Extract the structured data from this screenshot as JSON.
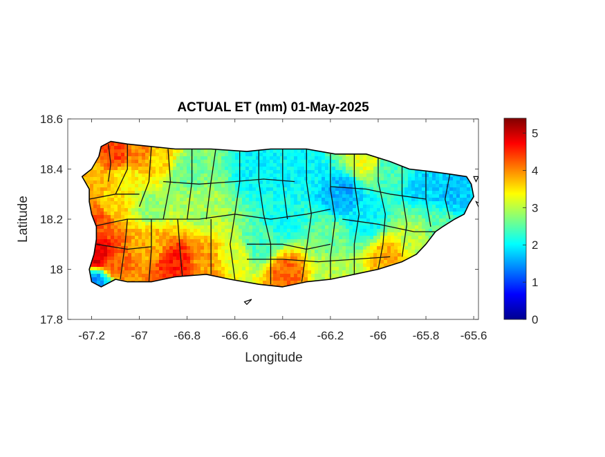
{
  "chart_data": {
    "type": "heatmap",
    "title": "ACTUAL ET (mm) 01-May-2025",
    "xlabel": "Longitude",
    "ylabel": "Latitude",
    "xlim": [
      -67.3,
      -65.58
    ],
    "ylim": [
      17.8,
      18.6
    ],
    "xticks": [
      {
        "value": -67.2,
        "label": "-67.2"
      },
      {
        "value": -67.0,
        "label": "-67"
      },
      {
        "value": -66.8,
        "label": "-66.8"
      },
      {
        "value": -66.6,
        "label": "-66.6"
      },
      {
        "value": -66.4,
        "label": "-66.4"
      },
      {
        "value": -66.2,
        "label": "-66.2"
      },
      {
        "value": -66.0,
        "label": "-66"
      },
      {
        "value": -65.8,
        "label": "-65.8"
      },
      {
        "value": -65.6,
        "label": "-65.6"
      }
    ],
    "yticks": [
      {
        "value": 18.6,
        "label": "18.6"
      },
      {
        "value": 18.4,
        "label": "18.4"
      },
      {
        "value": 18.2,
        "label": "18.2"
      },
      {
        "value": 18.0,
        "label": "18"
      },
      {
        "value": 17.8,
        "label": "17.8"
      }
    ],
    "colorbar": {
      "colormap": "jet",
      "range": [
        0,
        5.4
      ],
      "ticks": [
        {
          "value": 0,
          "label": "0"
        },
        {
          "value": 1,
          "label": "1"
        },
        {
          "value": 2,
          "label": "2"
        },
        {
          "value": 3,
          "label": "3"
        },
        {
          "value": 4,
          "label": "4"
        },
        {
          "value": 5,
          "label": "5"
        }
      ]
    },
    "outline": [
      [
        -67.24,
        18.37
      ],
      [
        -67.2,
        18.4
      ],
      [
        -67.17,
        18.45
      ],
      [
        -67.16,
        18.49
      ],
      [
        -67.12,
        18.51
      ],
      [
        -67.05,
        18.5
      ],
      [
        -66.95,
        18.49
      ],
      [
        -66.85,
        18.48
      ],
      [
        -66.7,
        18.48
      ],
      [
        -66.55,
        18.47
      ],
      [
        -66.45,
        18.48
      ],
      [
        -66.3,
        18.48
      ],
      [
        -66.18,
        18.46
      ],
      [
        -66.05,
        18.46
      ],
      [
        -65.95,
        18.43
      ],
      [
        -65.87,
        18.4
      ],
      [
        -65.78,
        18.39
      ],
      [
        -65.7,
        18.38
      ],
      [
        -65.63,
        18.37
      ],
      [
        -65.61,
        18.34
      ],
      [
        -65.6,
        18.29
      ],
      [
        -65.62,
        18.26
      ],
      [
        -65.64,
        18.22
      ],
      [
        -65.68,
        18.2
      ],
      [
        -65.73,
        18.17
      ],
      [
        -65.76,
        18.15
      ],
      [
        -65.8,
        18.1
      ],
      [
        -65.84,
        18.06
      ],
      [
        -65.9,
        18.03
      ],
      [
        -66.0,
        18.0
      ],
      [
        -66.1,
        17.98
      ],
      [
        -66.2,
        17.96
      ],
      [
        -66.3,
        17.95
      ],
      [
        -66.4,
        17.93
      ],
      [
        -66.5,
        17.94
      ],
      [
        -66.62,
        17.96
      ],
      [
        -66.72,
        17.98
      ],
      [
        -66.85,
        17.97
      ],
      [
        -66.95,
        17.95
      ],
      [
        -67.05,
        17.95
      ],
      [
        -67.1,
        17.96
      ],
      [
        -67.16,
        17.93
      ],
      [
        -67.2,
        17.95
      ],
      [
        -67.21,
        18.0
      ],
      [
        -67.19,
        18.06
      ],
      [
        -67.18,
        18.12
      ],
      [
        -67.18,
        18.17
      ],
      [
        -67.2,
        18.22
      ],
      [
        -67.21,
        18.27
      ],
      [
        -67.21,
        18.32
      ],
      [
        -67.24,
        18.37
      ]
    ],
    "islets": [
      [
        [
          -66.56,
          17.87
        ],
        [
          -66.53,
          17.88
        ],
        [
          -66.55,
          17.86
        ]
      ],
      [
        [
          -65.6,
          18.37
        ],
        [
          -65.58,
          18.37
        ],
        [
          -65.59,
          18.35
        ]
      ],
      [
        [
          -65.59,
          18.27
        ],
        [
          -65.57,
          18.26
        ],
        [
          -65.58,
          18.25
        ]
      ]
    ],
    "municipal_boundaries": [
      [
        [
          -67.13,
          18.5
        ],
        [
          -67.12,
          18.42
        ],
        [
          -67.13,
          18.35
        ]
      ],
      [
        [
          -67.21,
          18.28
        ],
        [
          -67.1,
          18.3
        ],
        [
          -67.0,
          18.3
        ]
      ],
      [
        [
          -67.05,
          18.5
        ],
        [
          -67.05,
          18.4
        ],
        [
          -67.1,
          18.3
        ]
      ],
      [
        [
          -66.95,
          18.49
        ],
        [
          -66.96,
          18.35
        ],
        [
          -67.0,
          18.25
        ]
      ],
      [
        [
          -66.88,
          18.48
        ],
        [
          -66.87,
          18.35
        ],
        [
          -66.9,
          18.2
        ]
      ],
      [
        [
          -66.78,
          18.48
        ],
        [
          -66.78,
          18.35
        ],
        [
          -66.8,
          18.2
        ]
      ],
      [
        [
          -66.68,
          18.48
        ],
        [
          -66.7,
          18.35
        ],
        [
          -66.72,
          18.2
        ]
      ],
      [
        [
          -67.2,
          18.17
        ],
        [
          -67.05,
          18.2
        ],
        [
          -66.9,
          18.2
        ],
        [
          -66.75,
          18.2
        ],
        [
          -66.6,
          18.22
        ]
      ],
      [
        [
          -67.18,
          18.1
        ],
        [
          -67.05,
          18.08
        ],
        [
          -66.95,
          18.09
        ]
      ],
      [
        [
          -67.05,
          18.2
        ],
        [
          -67.06,
          18.1
        ],
        [
          -67.08,
          17.96
        ]
      ],
      [
        [
          -66.95,
          18.2
        ],
        [
          -66.95,
          18.08
        ],
        [
          -66.96,
          17.95
        ]
      ],
      [
        [
          -66.84,
          18.2
        ],
        [
          -66.83,
          18.08
        ],
        [
          -66.82,
          17.97
        ]
      ],
      [
        [
          -66.7,
          18.2
        ],
        [
          -66.7,
          18.08
        ],
        [
          -66.7,
          17.98
        ]
      ],
      [
        [
          -66.58,
          18.47
        ],
        [
          -66.58,
          18.35
        ],
        [
          -66.6,
          18.22
        ],
        [
          -66.62,
          18.1
        ],
        [
          -66.6,
          17.96
        ]
      ],
      [
        [
          -66.9,
          18.35
        ],
        [
          -66.75,
          18.34
        ],
        [
          -66.6,
          18.35
        ],
        [
          -66.48,
          18.36
        ],
        [
          -66.35,
          18.35
        ]
      ],
      [
        [
          -66.5,
          18.48
        ],
        [
          -66.5,
          18.35
        ],
        [
          -66.48,
          18.22
        ],
        [
          -66.45,
          18.1
        ],
        [
          -66.45,
          17.94
        ]
      ],
      [
        [
          -66.4,
          18.48
        ],
        [
          -66.4,
          18.35
        ],
        [
          -66.38,
          18.2
        ]
      ],
      [
        [
          -66.6,
          18.22
        ],
        [
          -66.45,
          18.2
        ],
        [
          -66.3,
          18.22
        ],
        [
          -66.2,
          18.24
        ]
      ],
      [
        [
          -66.55,
          18.1
        ],
        [
          -66.4,
          18.1
        ],
        [
          -66.3,
          18.08
        ],
        [
          -66.2,
          18.1
        ]
      ],
      [
        [
          -66.3,
          18.48
        ],
        [
          -66.3,
          18.35
        ],
        [
          -66.28,
          18.22
        ],
        [
          -66.3,
          18.08
        ],
        [
          -66.32,
          17.95
        ]
      ],
      [
        [
          -66.2,
          18.46
        ],
        [
          -66.2,
          18.32
        ],
        [
          -66.18,
          18.2
        ],
        [
          -66.2,
          18.05
        ],
        [
          -66.2,
          17.96
        ]
      ],
      [
        [
          -66.1,
          18.46
        ],
        [
          -66.1,
          18.35
        ],
        [
          -66.08,
          18.22
        ],
        [
          -66.1,
          18.1
        ],
        [
          -66.1,
          17.98
        ]
      ],
      [
        [
          -66.2,
          18.33
        ],
        [
          -66.05,
          18.32
        ],
        [
          -65.95,
          18.3
        ],
        [
          -65.8,
          18.28
        ]
      ],
      [
        [
          -66.0,
          18.46
        ],
        [
          -66.0,
          18.35
        ],
        [
          -65.97,
          18.22
        ],
        [
          -65.98,
          18.1
        ],
        [
          -66.0,
          18.0
        ]
      ],
      [
        [
          -65.9,
          18.42
        ],
        [
          -65.9,
          18.3
        ],
        [
          -65.88,
          18.18
        ],
        [
          -65.9,
          18.05
        ]
      ],
      [
        [
          -65.8,
          18.39
        ],
        [
          -65.8,
          18.28
        ],
        [
          -65.78,
          18.17
        ]
      ],
      [
        [
          -65.7,
          18.38
        ],
        [
          -65.72,
          18.28
        ],
        [
          -65.7,
          18.2
        ]
      ],
      [
        [
          -66.15,
          18.2
        ],
        [
          -66.0,
          18.18
        ],
        [
          -65.85,
          18.15
        ],
        [
          -65.75,
          18.15
        ]
      ],
      [
        [
          -66.55,
          18.04
        ],
        [
          -66.4,
          18.04
        ],
        [
          -66.25,
          18.03
        ],
        [
          -66.1,
          18.04
        ],
        [
          -65.95,
          18.05
        ]
      ]
    ],
    "field_anchors": [
      {
        "lon": -67.17,
        "lat": 18.05,
        "value": 4.9
      },
      {
        "lon": -67.17,
        "lat": 18.2,
        "value": 4.3
      },
      {
        "lon": -67.2,
        "lat": 18.36,
        "value": 3.8
      },
      {
        "lon": -67.12,
        "lat": 18.26,
        "value": 3.6
      },
      {
        "lon": -67.1,
        "lat": 18.47,
        "value": 4.4
      },
      {
        "lon": -67.0,
        "lat": 18.47,
        "value": 4.0
      },
      {
        "lon": -66.92,
        "lat": 18.44,
        "value": 3.6
      },
      {
        "lon": -67.05,
        "lat": 18.35,
        "value": 3.4
      },
      {
        "lon": -66.95,
        "lat": 18.25,
        "value": 2.8
      },
      {
        "lon": -66.8,
        "lat": 18.38,
        "value": 2.6
      },
      {
        "lon": -66.75,
        "lat": 18.25,
        "value": 2.9
      },
      {
        "lon": -66.95,
        "lat": 18.1,
        "value": 3.8
      },
      {
        "lon": -66.85,
        "lat": 18.03,
        "value": 4.6
      },
      {
        "lon": -67.1,
        "lat": 18.02,
        "value": 4.2
      },
      {
        "lon": -66.72,
        "lat": 18.03,
        "value": 3.9
      },
      {
        "lon": -66.6,
        "lat": 18.05,
        "value": 3.2
      },
      {
        "lon": -66.5,
        "lat": 18.4,
        "value": 2.0
      },
      {
        "lon": -66.35,
        "lat": 18.4,
        "value": 2.0
      },
      {
        "lon": -66.4,
        "lat": 18.2,
        "value": 2.1
      },
      {
        "lon": -66.5,
        "lat": 18.1,
        "value": 2.4
      },
      {
        "lon": -66.38,
        "lat": 17.98,
        "value": 4.2
      },
      {
        "lon": -66.2,
        "lat": 17.99,
        "value": 3.0
      },
      {
        "lon": -66.15,
        "lat": 18.3,
        "value": 1.6
      },
      {
        "lon": -66.05,
        "lat": 18.2,
        "value": 2.0
      },
      {
        "lon": -65.95,
        "lat": 18.05,
        "value": 3.8
      },
      {
        "lon": -66.05,
        "lat": 18.44,
        "value": 3.3
      },
      {
        "lon": -65.95,
        "lat": 18.4,
        "value": 2.4
      },
      {
        "lon": -65.8,
        "lat": 18.33,
        "value": 1.8
      },
      {
        "lon": -65.7,
        "lat": 18.3,
        "value": 1.7
      },
      {
        "lon": -65.75,
        "lat": 18.18,
        "value": 2.5
      },
      {
        "lon": -65.85,
        "lat": 18.12,
        "value": 3.0
      },
      {
        "lon": -66.2,
        "lat": 18.12,
        "value": 2.6
      },
      {
        "lon": -67.18,
        "lat": 17.95,
        "value": 1.5
      }
    ]
  }
}
